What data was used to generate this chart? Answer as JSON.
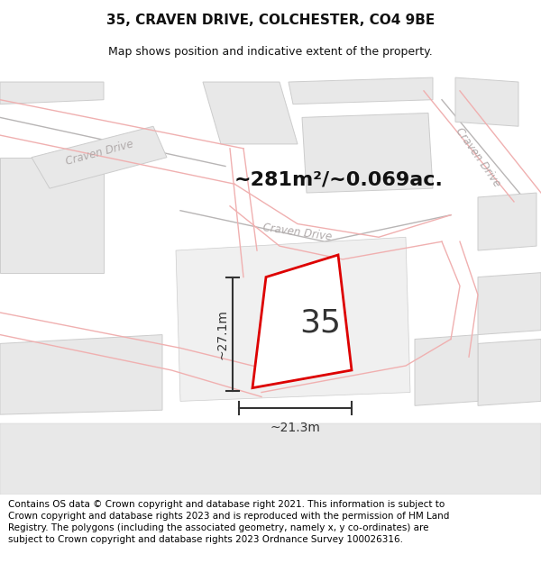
{
  "title": "35, CRAVEN DRIVE, COLCHESTER, CO4 9BE",
  "subtitle": "Map shows position and indicative extent of the property.",
  "footer": "Contains OS data © Crown copyright and database right 2021. This information is subject to Crown copyright and database rights 2023 and is reproduced with the permission of HM Land Registry. The polygons (including the associated geometry, namely x, y co-ordinates) are subject to Crown copyright and database rights 2023 Ordnance Survey 100026316.",
  "area_label": "~281m²/~0.069ac.",
  "property_number": "35",
  "width_label": "~21.3m",
  "height_label": "~27.1m",
  "bg_color": "#ffffff",
  "map_bg": "#ffffff",
  "property_outline_color": "#dd0000",
  "road_pink_color": "#f0b0b0",
  "road_center_color": "#c8c0c0",
  "block_fill": "#e8e8e8",
  "block_outline": "#cccccc",
  "title_fontsize": 11,
  "subtitle_fontsize": 9,
  "footer_fontsize": 7.5,
  "area_fontsize": 16,
  "number_fontsize": 26,
  "measure_fontsize": 10
}
